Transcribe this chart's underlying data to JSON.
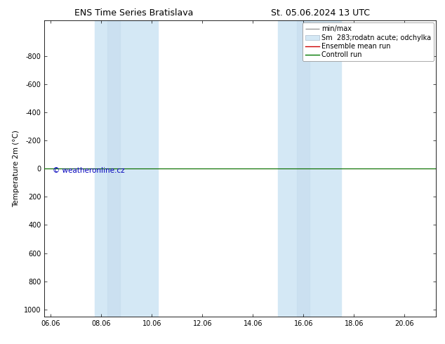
{
  "title_left": "ENS Time Series Bratislava",
  "title_right": "St. 05.06.2024 13 UTC",
  "ylabel": "Temperature 2m (°C)",
  "ylim_bottom": 1050,
  "ylim_top": -1050,
  "yticks": [
    -800,
    -600,
    -400,
    -200,
    0,
    200,
    400,
    600,
    800,
    1000
  ],
  "xlim_left": 5.75,
  "xlim_right": 21.25,
  "xtick_positions": [
    6,
    8,
    10,
    12,
    14,
    16,
    18,
    20
  ],
  "xtick_labels": [
    "06.06",
    "08.06",
    "10.06",
    "12.06",
    "14.06",
    "16.06",
    "18.06",
    "20.06"
  ],
  "shaded_bands": [
    [
      7.75,
      8.75
    ],
    [
      8.75,
      10.25
    ],
    [
      15.0,
      16.0
    ],
    [
      16.0,
      17.5
    ]
  ],
  "shade_colors": [
    "#ddeeff",
    "#d0e5f5",
    "#ddeeff",
    "#d0e5f5"
  ],
  "shade_color": "#d4e8f5",
  "green_line_y": 0,
  "red_line_y": 0,
  "green_line_color": "#007700",
  "red_line_color": "#cc0000",
  "watermark": "© weatheronline.cz",
  "watermark_color": "#0000bb",
  "legend_labels": [
    "min/max",
    "Sm  283;rodatn acute; odchylka",
    "Ensemble mean run",
    "Controll run"
  ],
  "legend_line_colors": [
    "#999999",
    "#bbccdd",
    "#cc0000",
    "#007700"
  ],
  "bg_color": "#ffffff",
  "plot_bg_color": "#ffffff",
  "border_color": "#000000",
  "tick_color": "#000000",
  "title_fontsize": 9,
  "label_fontsize": 7.5,
  "tick_fontsize": 7,
  "legend_fontsize": 7,
  "watermark_fontsize": 7.5
}
